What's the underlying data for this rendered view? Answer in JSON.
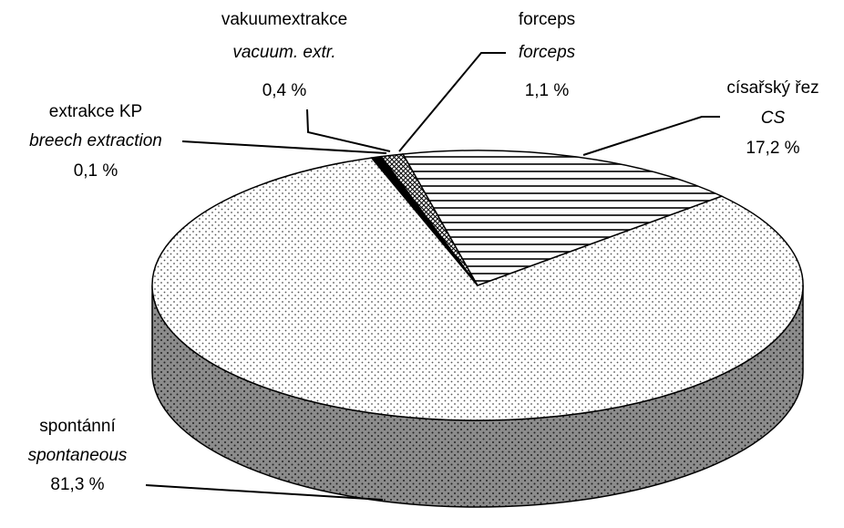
{
  "chart_data": {
    "type": "pie3d",
    "categories": [
      "spontánní",
      "extrakce KP",
      "vakuumextrakce",
      "forceps",
      "císařský řez"
    ],
    "categories_en": [
      "spontaneous",
      "breech extraction",
      "vacuum. extr.",
      "forceps",
      "CS"
    ],
    "values": [
      81.3,
      0.1,
      0.4,
      1.1,
      17.2
    ],
    "value_labels": [
      "81,3 %",
      "0,1 %",
      "0,4 %",
      "1,1 %",
      "17,2 %"
    ]
  }
}
